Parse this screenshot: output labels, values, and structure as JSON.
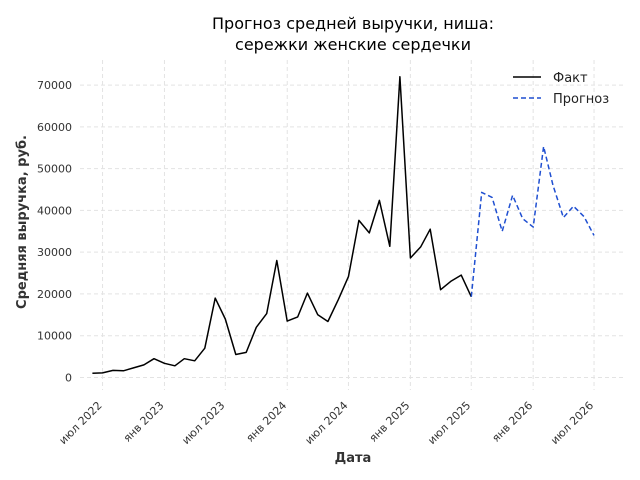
{
  "chart_data": {
    "type": "line",
    "title_lines": [
      "Прогноз средней выручки, ниша:",
      "сережки женские сердечки"
    ],
    "xlabel": "Дата",
    "ylabel": "Средняя выручка, руб.",
    "x_ticks": [
      {
        "date": "2022-07-01",
        "label": "июл 2022"
      },
      {
        "date": "2023-01-01",
        "label": "янв 2023"
      },
      {
        "date": "2023-07-01",
        "label": "июл 2023"
      },
      {
        "date": "2024-01-01",
        "label": "янв 2024"
      },
      {
        "date": "2024-07-01",
        "label": "июл 2024"
      },
      {
        "date": "2025-01-01",
        "label": "янв 2025"
      },
      {
        "date": "2025-07-01",
        "label": "июл 2025"
      },
      {
        "date": "2026-01-01",
        "label": "янв 2026"
      },
      {
        "date": "2026-07-01",
        "label": "июл 2026"
      }
    ],
    "y_ticks": [
      0,
      10000,
      20000,
      30000,
      40000,
      50000,
      60000,
      70000
    ],
    "xlim": [
      "2022-04-25",
      "2026-10-01"
    ],
    "ylim": [
      -3000,
      76000
    ],
    "grid": true,
    "legend_position": "top-right",
    "series": [
      {
        "name": "Факт",
        "style": "solid",
        "color": "#000000",
        "points": [
          [
            "2022-06-01",
            1000
          ],
          [
            "2022-07-01",
            1100
          ],
          [
            "2022-08-01",
            1700
          ],
          [
            "2022-09-01",
            1600
          ],
          [
            "2022-10-01",
            2300
          ],
          [
            "2022-11-01",
            3000
          ],
          [
            "2022-12-01",
            4500
          ],
          [
            "2023-01-01",
            3400
          ],
          [
            "2023-02-01",
            2800
          ],
          [
            "2023-03-01",
            4500
          ],
          [
            "2023-04-01",
            4000
          ],
          [
            "2023-05-01",
            7000
          ],
          [
            "2023-06-01",
            19000
          ],
          [
            "2023-07-01",
            14000
          ],
          [
            "2023-08-01",
            5500
          ],
          [
            "2023-09-01",
            6000
          ],
          [
            "2023-10-01",
            12000
          ],
          [
            "2023-11-01",
            15300
          ],
          [
            "2023-12-01",
            28000
          ],
          [
            "2024-01-01",
            13500
          ],
          [
            "2024-02-01",
            14500
          ],
          [
            "2024-03-01",
            20200
          ],
          [
            "2024-04-01",
            15000
          ],
          [
            "2024-05-01",
            13400
          ],
          [
            "2024-06-01",
            18700
          ],
          [
            "2024-07-01",
            24200
          ],
          [
            "2024-08-01",
            37600
          ],
          [
            "2024-09-01",
            34600
          ],
          [
            "2024-10-01",
            42400
          ],
          [
            "2024-11-01",
            31400
          ],
          [
            "2024-12-01",
            72000
          ],
          [
            "2025-01-01",
            28600
          ],
          [
            "2025-02-01",
            31300
          ],
          [
            "2025-03-01",
            35500
          ],
          [
            "2025-04-01",
            21000
          ],
          [
            "2025-05-01",
            23000
          ],
          [
            "2025-06-01",
            24500
          ],
          [
            "2025-07-01",
            19300
          ]
        ]
      },
      {
        "name": "Прогноз",
        "style": "dashed",
        "color": "#1f4fd1",
        "points": [
          [
            "2025-07-01",
            19300
          ],
          [
            "2025-08-01",
            44300
          ],
          [
            "2025-09-01",
            43100
          ],
          [
            "2025-10-01",
            35000
          ],
          [
            "2025-11-01",
            43600
          ],
          [
            "2025-12-01",
            38000
          ],
          [
            "2026-01-01",
            36000
          ],
          [
            "2026-02-01",
            55300
          ],
          [
            "2026-03-01",
            46000
          ],
          [
            "2026-04-01",
            38300
          ],
          [
            "2026-05-01",
            41000
          ],
          [
            "2026-06-01",
            38500
          ],
          [
            "2026-07-01",
            34000
          ]
        ]
      }
    ]
  }
}
